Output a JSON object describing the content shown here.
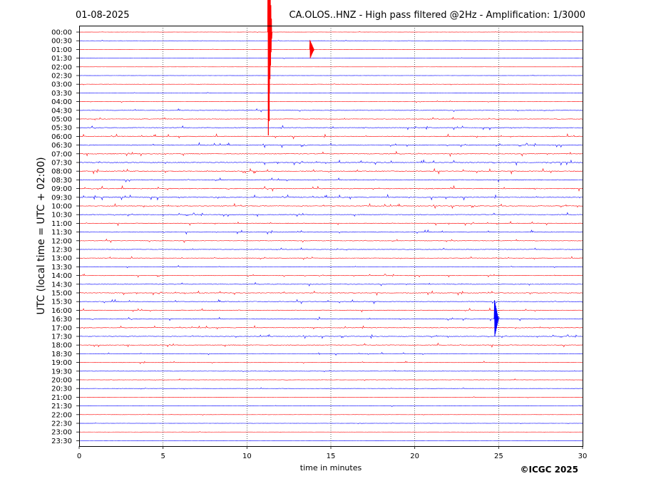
{
  "header": {
    "date": "01-08-2025",
    "title": "CA.OLOS..HNZ - High pass filtered @2Hz - Amplification: 1/3000"
  },
  "footer": {
    "copyright": "©ICGC 2025"
  },
  "colors": {
    "red": "#ff0000",
    "blue": "#0000ff",
    "grid": "#000000",
    "axis": "#000000"
  },
  "chart_data": {
    "type": "line",
    "xlabel": "time in minutes",
    "ylabel": "UTC (local time = UTC + 02:00)",
    "xlim": [
      0,
      30
    ],
    "xticks": [
      "0",
      "5",
      "10",
      "15",
      "20",
      "25",
      "30"
    ],
    "xtick_values": [
      0,
      5,
      10,
      15,
      20,
      25,
      30
    ],
    "grid": "vertical dotted at x ticks",
    "trace_times": [
      "00:00",
      "00:30",
      "01:00",
      "01:30",
      "02:00",
      "02:30",
      "03:00",
      "03:30",
      "04:00",
      "04:30",
      "05:00",
      "05:30",
      "06:00",
      "06:30",
      "07:00",
      "07:30",
      "08:00",
      "08:30",
      "09:00",
      "09:30",
      "10:00",
      "10:30",
      "11:00",
      "11:30",
      "12:00",
      "12:30",
      "13:00",
      "13:30",
      "14:00",
      "14:30",
      "15:00",
      "15:30",
      "16:00",
      "16:30",
      "17:00",
      "17:30",
      "18:00",
      "18:30",
      "19:00",
      "19:30",
      "20:00",
      "20:30",
      "21:00",
      "21:30",
      "22:00",
      "22:30",
      "23:00",
      "23:30"
    ],
    "trace_colors": [
      "red",
      "blue",
      "red",
      "blue",
      "red",
      "blue",
      "red",
      "blue",
      "red",
      "blue",
      "red",
      "blue",
      "red",
      "blue",
      "red",
      "blue",
      "red",
      "blue",
      "red",
      "blue",
      "red",
      "blue",
      "red",
      "blue",
      "red",
      "blue",
      "red",
      "blue",
      "red",
      "blue",
      "red",
      "blue",
      "red",
      "blue",
      "red",
      "blue",
      "red",
      "blue",
      "red",
      "blue",
      "red",
      "blue",
      "red",
      "blue",
      "red",
      "blue",
      "red",
      "blue"
    ],
    "activity_level": [
      0.2,
      0.2,
      0.2,
      0.2,
      0.15,
      0.2,
      0.25,
      0.2,
      0.35,
      0.55,
      0.6,
      0.75,
      0.85,
      0.85,
      0.85,
      0.9,
      0.9,
      0.85,
      0.95,
      0.95,
      0.8,
      0.75,
      0.75,
      0.7,
      0.6,
      0.55,
      0.55,
      0.55,
      0.6,
      0.6,
      0.75,
      0.7,
      0.75,
      0.7,
      0.7,
      0.7,
      0.7,
      0.55,
      0.45,
      0.4,
      0.35,
      0.3,
      0.25,
      0.25,
      0.2,
      0.2,
      0.15,
      0.1
    ],
    "notable_events": [
      {
        "time": "00:00",
        "minute": 11.3,
        "amplitude": 6.0,
        "note": "large spike"
      },
      {
        "time": "01:00",
        "minute": 13.8,
        "amplitude": 0.6
      },
      {
        "time": "16:30",
        "minute": 24.8,
        "amplitude": 1.2
      }
    ]
  }
}
